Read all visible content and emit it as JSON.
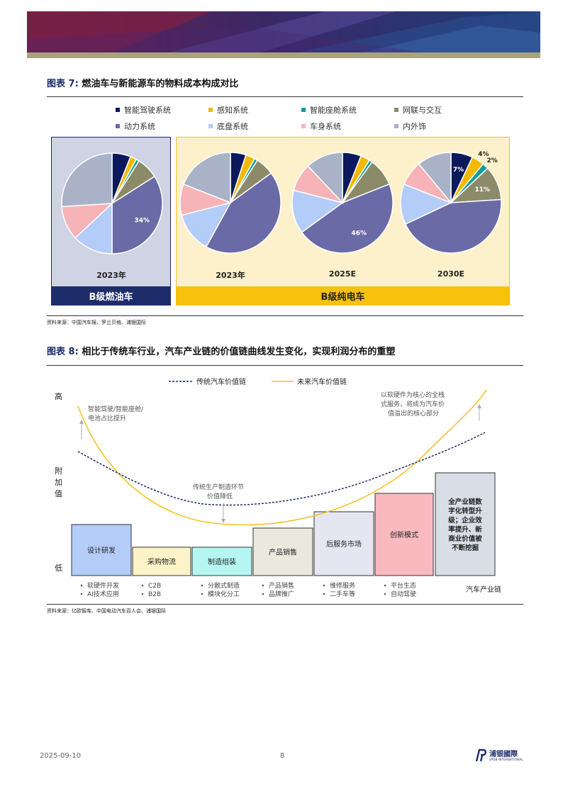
{
  "figure7": {
    "title_num": "图表 7:",
    "title_text": "燃油车与新能源车的物料成本构成对比",
    "legend": [
      {
        "label": "智能驾驶系统",
        "color": "#0c1a5b"
      },
      {
        "label": "感知系统",
        "color": "#f5b800"
      },
      {
        "label": "智能座舱系统",
        "color": "#0e9f9a"
      },
      {
        "label": "网联与交互",
        "color": "#8b8b6a"
      },
      {
        "label": "动力系统",
        "color": "#6a6aa6"
      },
      {
        "label": "底盘系统",
        "color": "#b3ccf8"
      },
      {
        "label": "车身系统",
        "color": "#f6b3b8"
      },
      {
        "label": "内外饰",
        "color": "#a9b2c6"
      }
    ],
    "fuel_label": "B级燃油车",
    "ev_label": "B级纯电车",
    "source": "资料来源：中国汽车报、罗兰贝格、浦银国际",
    "chart_data": {
      "type": "pie",
      "categories": [
        "智能驾驶系统",
        "感知系统",
        "智能座舱系统",
        "网联与交互",
        "动力系统",
        "底盘系统",
        "车身系统",
        "内外饰"
      ],
      "pies": [
        {
          "year": "2023年",
          "values": [
            6,
            2,
            1,
            7,
            34,
            13,
            11,
            26
          ],
          "labels": [
            null,
            null,
            null,
            null,
            "34%",
            null,
            null,
            null
          ]
        },
        {
          "year": "2023年",
          "values": [
            5,
            3,
            1,
            6,
            43,
            13,
            10,
            19
          ],
          "labels": [
            null,
            null,
            null,
            null,
            null,
            null,
            null,
            null
          ]
        },
        {
          "year": "2025E",
          "values": [
            6,
            3,
            1,
            9,
            46,
            14,
            9,
            12
          ],
          "labels": [
            null,
            null,
            null,
            null,
            "46%",
            null,
            null,
            null
          ]
        },
        {
          "year": "2030E",
          "values": [
            7,
            4,
            2,
            11,
            44,
            13,
            8,
            11
          ],
          "labels": [
            "7%",
            "4%",
            "2%",
            "11%",
            null,
            null,
            null,
            null
          ]
        }
      ]
    }
  },
  "figure8": {
    "title_num": "图表 8:",
    "title_text": "相比于传统车行业，汽车产业链的价值链曲线发生变化，实现利润分布的重塑",
    "legend_traditional": "传统汽车价值链",
    "legend_future": "未来汽车价值链",
    "y_high": "高",
    "y_axis": [
      "附",
      "加",
      "值"
    ],
    "y_low": "低",
    "x_axis": "汽车产业链",
    "annotation_left": [
      "智能驾驶/智能座舱/",
      "电池占比提升"
    ],
    "annotation_mid": [
      "传统生产制造环节",
      "价值降低"
    ],
    "annotation_right": [
      "以软硬件为核心的全栈",
      "式服务，将成为汽车价",
      "值溢出的核心部分"
    ],
    "stages": [
      {
        "name": [
          "设计研发"
        ],
        "color": "#b3ccf8",
        "bullets": [
          "软硬件开发",
          "AI技术应用"
        ]
      },
      {
        "name": [
          "采购物流"
        ],
        "color": "#fdf3c8",
        "bullets": [
          "C2B",
          "B2B"
        ]
      },
      {
        "name": [
          "制造组装"
        ],
        "color": "#b5f6f2",
        "bullets": [
          "分散式制造",
          "模块化分工"
        ]
      },
      {
        "name": [
          "产品销售"
        ],
        "color": "#ebe9dd",
        "bullets": [
          "产品销售",
          "品牌推广"
        ]
      },
      {
        "name": [
          "后服务市场"
        ],
        "color": "#e6e6f2",
        "bullets": [
          "维修服务",
          "二手车等"
        ]
      },
      {
        "name": [
          "创新模式"
        ],
        "color": "#f9b9be",
        "bullets": [
          "平台生态",
          "自动驾驶"
        ]
      },
      {
        "name": [
          "全产业链数",
          "字化转型升",
          "级；企业效",
          "率提升、新",
          "商业价值被",
          "不断挖掘"
        ],
        "color": "#d9dde6",
        "bullets": []
      }
    ],
    "source": "资料来源：亿欧智库、中国电动汽车百人会、浦银国际"
  },
  "footer": {
    "date": "2025-09-10",
    "page": "8",
    "brand": "浦银國際",
    "brand_sub": "SPDB INTERNATIONAL"
  }
}
